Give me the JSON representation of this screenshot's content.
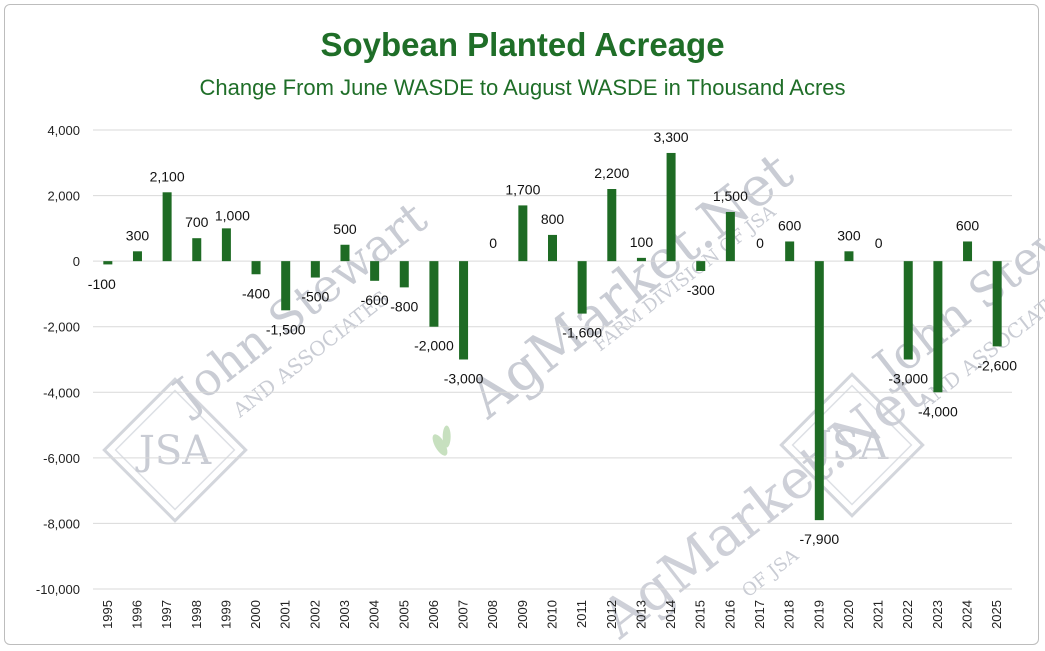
{
  "colors": {
    "bar": "#1e6b24",
    "title": "#1f6e28",
    "grid": "#d9d9d9"
  },
  "chart_data": {
    "type": "bar",
    "title": "Soybean Planted Acreage",
    "subtitle": "Change From June WASDE to August WASDE in Thousand Acres",
    "xlabel": "",
    "ylabel": "",
    "ylim": [
      -10000,
      4000
    ],
    "yticks": [
      4000,
      2000,
      0,
      -2000,
      -4000,
      -6000,
      -8000,
      -10000
    ],
    "ytick_labels": [
      "4,000",
      "2,000",
      "0",
      "-2,000",
      "-4,000",
      "-6,000",
      "-8,000",
      "-10,000"
    ],
    "grid": true,
    "legend": "none",
    "categories": [
      "1995",
      "1996",
      "1997",
      "1998",
      "1999",
      "2000",
      "2001",
      "2002",
      "2003",
      "2004",
      "2005",
      "2006",
      "2007",
      "2008",
      "2009",
      "2010",
      "2011",
      "2012",
      "2013",
      "2014",
      "2015",
      "2016",
      "2017",
      "2018",
      "2019",
      "2020",
      "2021",
      "2022",
      "2023",
      "2024",
      "2025"
    ],
    "values": [
      -100,
      300,
      2100,
      700,
      1000,
      -400,
      -1500,
      -500,
      500,
      -600,
      -800,
      -2000,
      -3000,
      0,
      1700,
      800,
      -1600,
      2200,
      100,
      3300,
      -300,
      1500,
      0,
      600,
      -7900,
      300,
      0,
      -3000,
      -4000,
      600,
      -2600
    ],
    "data_labels": [
      "-100",
      "300",
      "2,100",
      "700",
      "1,000",
      "-400",
      "-1,500",
      "-500",
      "500",
      "-600",
      "-800",
      "-2,000",
      "-3,000",
      "0",
      "1,700",
      "800",
      "-1,600",
      "2,200",
      "100",
      "3,300",
      "-300",
      "1,500",
      "0",
      "600",
      "-7,900",
      "300",
      "0",
      "-3,000",
      "-4,000",
      "600",
      "-2,600"
    ]
  },
  "watermarks": {
    "left_text": "John Stewart",
    "left_sub": "AND ASSOCIATES",
    "center_text": "AgMarket.Net",
    "center_sub": "FARM DIVISION OF JSA",
    "bottom_text": "AgMarket.Net",
    "bottom_sub": "OF JSA",
    "right_text": "John Stewart",
    "right_sub": "AND ASSOCIATES",
    "logo_letters": "JSA"
  }
}
